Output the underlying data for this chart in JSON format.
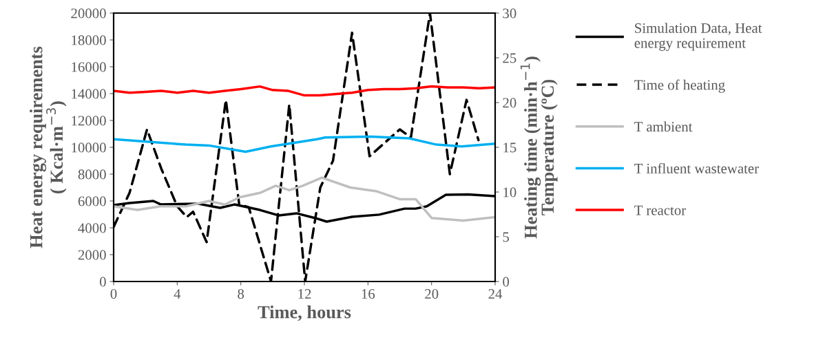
{
  "chart_data": {
    "type": "line",
    "xlabel": "Time, hours",
    "ylabel": "Heat energy requirements\n( Kcal·m$^{−3}$)",
    "y2label": "Heating time (min·h$^{−1}$)\nTemperature (ºC)",
    "xlim": [
      0,
      24
    ],
    "xticks": [
      0,
      4,
      8,
      12,
      16,
      20,
      24
    ],
    "ylim": [
      0,
      20000
    ],
    "yticks": [
      0,
      2000,
      4000,
      6000,
      8000,
      10000,
      12000,
      14000,
      16000,
      18000,
      20000
    ],
    "y2lim": [
      0,
      30
    ],
    "y2ticks": [
      0,
      5,
      10,
      15,
      20,
      25,
      30
    ],
    "grid": false,
    "legend": "right",
    "line_style": "solid",
    "marker": "none",
    "series": [
      {
        "name": "Simulation Data, Heat\nenergy requirement",
        "color": "#000000",
        "x": [
          0,
          1.0,
          2.5,
          2.95,
          5.3,
          6.0,
          6.7,
          7.6,
          9.2,
          10.4,
          11.5,
          12.7,
          13.4,
          15.0,
          16.7,
          18.3,
          19.0,
          19.7,
          20.9,
          22.3,
          24
        ],
        "values": [
          5690,
          5850,
          6000,
          5750,
          5800,
          5640,
          5490,
          5740,
          5330,
          4920,
          5080,
          4720,
          4460,
          4820,
          4980,
          5430,
          5430,
          5600,
          6460,
          6490,
          6360
        ]
      },
      {
        "name": "Time of heating",
        "color": "#000000",
        "axis": "y2",
        "line_style": "dashed",
        "x": [
          0,
          1.0,
          2.1,
          3.0,
          4.0,
          4.6,
          5.0,
          5.85,
          7.06,
          7.9,
          8.5,
          9.9,
          11.05,
          12.05,
          13.0,
          13.8,
          15.0,
          16.1,
          18.0,
          18.7,
          19.9,
          21.15,
          22.2,
          22.95
        ],
        "values": [
          6.1,
          9.9,
          17.0,
          12.6,
          8.4,
          7.2,
          7.8,
          4.4,
          20.3,
          8.6,
          8.3,
          0,
          19.8,
          0,
          10.5,
          13.5,
          27.8,
          14.0,
          17.0,
          16.1,
          30,
          12.0,
          20.3,
          15.8
        ]
      },
      {
        "name": "T ambient",
        "color": "#bfbfbf",
        "axis": "y2",
        "x": [
          0,
          1.5,
          2.95,
          4.55,
          6.0,
          7.0,
          7.9,
          9.2,
          10.2,
          11.05,
          11.9,
          13.1,
          14.9,
          16.5,
          18.0,
          19.0,
          20.0,
          22.0,
          24
        ],
        "values": [
          8.4,
          8.0,
          8.4,
          8.4,
          9.0,
          8.6,
          9.4,
          9.9,
          10.7,
          10.2,
          10.7,
          11.6,
          10.5,
          10.1,
          9.2,
          9.2,
          7.1,
          6.8,
          7.2
        ]
      },
      {
        "name": "T influent wastewater",
        "color": "#00b0f0",
        "axis": "y2",
        "x": [
          0,
          4.55,
          6.0,
          8.3,
          9.9,
          12.8,
          13.3,
          16.2,
          18.6,
          20.3,
          21.9,
          24
        ],
        "values": [
          15.9,
          15.3,
          15.2,
          14.5,
          15.1,
          15.9,
          16.1,
          16.2,
          16.0,
          15.3,
          15.1,
          15.4
        ]
      },
      {
        "name": "T reactor",
        "color": "#ff0000",
        "axis": "y2",
        "x": [
          0,
          1,
          2,
          3,
          4,
          5,
          6,
          7,
          8,
          9.2,
          10,
          11,
          12,
          13,
          14.3,
          15,
          16,
          17,
          18,
          19,
          20,
          21,
          22,
          23,
          24
        ],
        "values": [
          21.3,
          21.1,
          21.2,
          21.3,
          21.1,
          21.3,
          21.1,
          21.3,
          21.5,
          21.8,
          21.4,
          21.3,
          20.8,
          20.8,
          21.0,
          21.1,
          21.4,
          21.5,
          21.5,
          21.6,
          21.8,
          21.7,
          21.7,
          21.6,
          21.7
        ]
      }
    ]
  }
}
